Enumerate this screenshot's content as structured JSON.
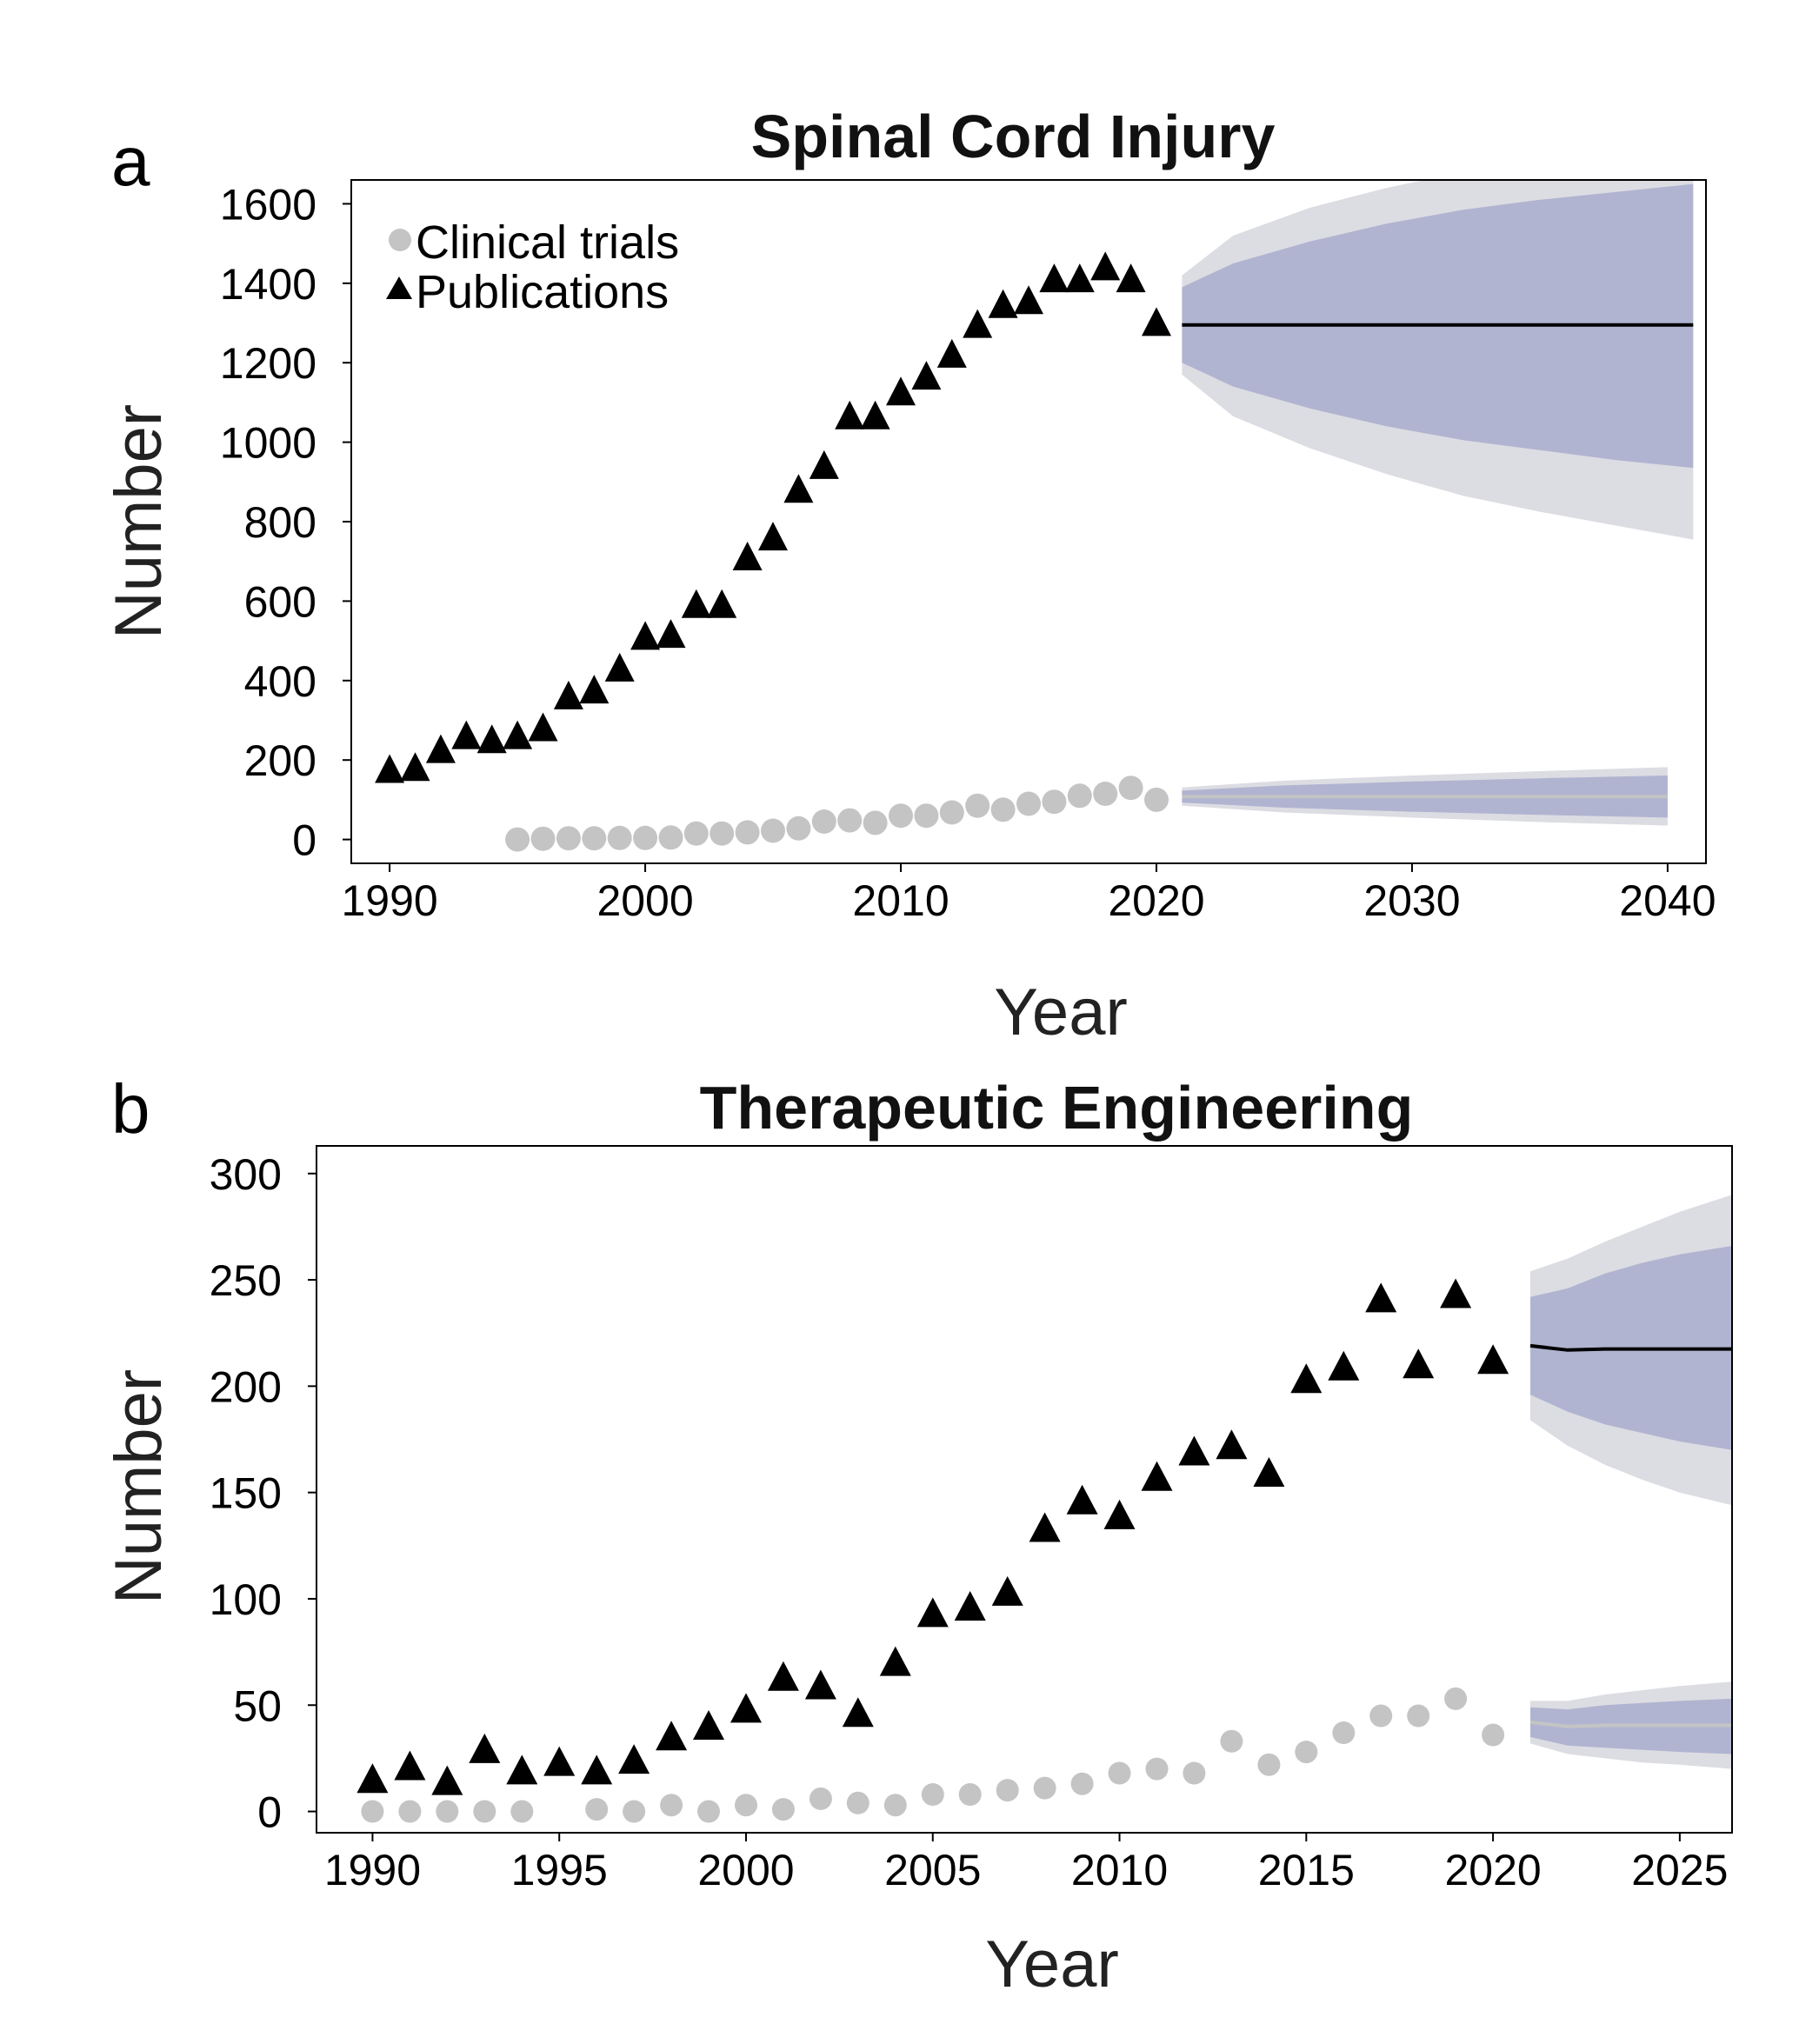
{
  "chart_data": [
    {
      "type": "scatter",
      "panel_label": "a",
      "title": "Spinal Cord Injury",
      "xlabel": "Year",
      "ylabel": "Number",
      "xlim": [
        1988.5,
        2041.5
      ],
      "ylim": [
        -60,
        1660
      ],
      "xticks": [
        1990,
        2000,
        2010,
        2020,
        2030,
        2040
      ],
      "yticks": [
        0,
        200,
        400,
        600,
        800,
        1000,
        1200,
        1400,
        1600
      ],
      "legend": {
        "placement": "top-left",
        "items": [
          {
            "label": "Clinical trials",
            "marker": "circle",
            "color": "#c4c4c4"
          },
          {
            "label": "Publications",
            "marker": "triangle",
            "color": "#000000"
          }
        ]
      },
      "series": [
        {
          "name": "Clinical trials",
          "marker": "circle",
          "color": "#c4c4c4",
          "x": [
            1995,
            1996,
            1997,
            1998,
            1999,
            2000,
            2001,
            2002,
            2003,
            2004,
            2005,
            2006,
            2007,
            2008,
            2009,
            2010,
            2011,
            2012,
            2013,
            2014,
            2015,
            2016,
            2017,
            2018,
            2019,
            2020
          ],
          "y": [
            0,
            2,
            3,
            3,
            4,
            4,
            5,
            15,
            15,
            18,
            22,
            28,
            45,
            48,
            42,
            60,
            60,
            68,
            85,
            75,
            90,
            95,
            110,
            115,
            130,
            100
          ]
        },
        {
          "name": "Publications",
          "marker": "triangle",
          "color": "#000000",
          "x": [
            1990,
            1991,
            1992,
            1993,
            1994,
            1995,
            1996,
            1997,
            1998,
            1999,
            2000,
            2001,
            2002,
            2003,
            2004,
            2005,
            2006,
            2007,
            2008,
            2009,
            2010,
            2011,
            2012,
            2013,
            2014,
            2015,
            2016,
            2017,
            2018,
            2019,
            2020
          ],
          "y": [
            175,
            180,
            225,
            260,
            250,
            260,
            280,
            360,
            375,
            430,
            510,
            515,
            590,
            590,
            710,
            760,
            880,
            940,
            1065,
            1065,
            1125,
            1165,
            1220,
            1295,
            1345,
            1355,
            1410,
            1410,
            1440,
            1410,
            1300
          ]
        }
      ],
      "forecasts": [
        {
          "series": "Publications",
          "line_color": "#000000",
          "x": [
            2021,
            2023,
            2026,
            2029,
            2032,
            2035,
            2038,
            2041
          ],
          "mean": [
            1295,
            1295,
            1295,
            1295,
            1295,
            1295,
            1295,
            1295
          ],
          "inner_lo": [
            1200,
            1140,
            1085,
            1040,
            1005,
            980,
            955,
            935
          ],
          "inner_hi": [
            1390,
            1450,
            1505,
            1550,
            1585,
            1610,
            1630,
            1650
          ],
          "outer_lo": [
            1170,
            1065,
            985,
            920,
            865,
            825,
            790,
            755
          ],
          "outer_hi": [
            1420,
            1520,
            1590,
            1640,
            1680,
            1710,
            1740,
            1760
          ]
        },
        {
          "series": "Clinical trials",
          "line_color": "#c4c4c4",
          "x": [
            2021,
            2025,
            2030,
            2035,
            2040
          ],
          "mean": [
            108,
            108,
            108,
            108,
            108
          ],
          "inner_lo": [
            93,
            80,
            70,
            62,
            55
          ],
          "inner_hi": [
            123,
            136,
            146,
            154,
            161
          ],
          "outer_lo": [
            85,
            68,
            55,
            44,
            35
          ],
          "outer_hi": [
            131,
            148,
            161,
            172,
            182
          ]
        }
      ],
      "band_colors": {
        "outer": "#dcdce3",
        "inner": "#b0b4d0"
      }
    },
    {
      "type": "scatter",
      "panel_label": "b",
      "title": "Therapeutic Engineering",
      "xlabel": "Year",
      "ylabel": "Number",
      "xlim": [
        1988.5,
        2026.4
      ],
      "ylim": [
        -10,
        313
      ],
      "xticks": [
        1990,
        1995,
        2000,
        2005,
        2010,
        2015,
        2020,
        2025
      ],
      "yticks": [
        0,
        50,
        100,
        150,
        200,
        250,
        300
      ],
      "series": [
        {
          "name": "Clinical trials",
          "marker": "circle",
          "color": "#c4c4c4",
          "x": [
            1990,
            1991,
            1992,
            1993,
            1994,
            1996,
            1997,
            1998,
            1999,
            2000,
            2001,
            2002,
            2003,
            2004,
            2005,
            2006,
            2007,
            2008,
            2009,
            2010,
            2011,
            2012,
            2013,
            2014,
            2015,
            2016,
            2017,
            2018,
            2019,
            2020
          ],
          "y": [
            0,
            0,
            0,
            0,
            0,
            1,
            0,
            3,
            0,
            3,
            1,
            6,
            4,
            3,
            8,
            8,
            10,
            11,
            13,
            18,
            20,
            18,
            33,
            22,
            28,
            37,
            45,
            45,
            53,
            36
          ]
        },
        {
          "name": "Publications",
          "marker": "triangle",
          "color": "#000000",
          "x": [
            1990,
            1991,
            1992,
            1993,
            1994,
            1995,
            1996,
            1997,
            1998,
            1999,
            2000,
            2001,
            2002,
            2003,
            2004,
            2005,
            2006,
            2007,
            2008,
            2009,
            2010,
            2011,
            2012,
            2013,
            2014,
            2015,
            2016,
            2017,
            2018,
            2019,
            2020
          ],
          "y": [
            15,
            21,
            14,
            29,
            19,
            23,
            19,
            24,
            35,
            40,
            48,
            63,
            59,
            46,
            70,
            93,
            96,
            103,
            133,
            146,
            139,
            157,
            169,
            172,
            159,
            203,
            209,
            241,
            210,
            243,
            212
          ]
        }
      ],
      "forecasts": [
        {
          "series": "Publications",
          "line_color": "#000000",
          "x": [
            2021,
            2022,
            2023,
            2024,
            2025,
            2026.4
          ],
          "mean": [
            219,
            217,
            217.5,
            217.5,
            217.5,
            217.5
          ],
          "inner_lo": [
            196,
            188,
            182,
            178,
            174,
            170
          ],
          "inner_hi": [
            242,
            246,
            253,
            258,
            262,
            266
          ],
          "outer_lo": [
            184,
            172,
            163,
            156,
            150,
            144
          ],
          "outer_hi": [
            254,
            260,
            268,
            275,
            282,
            290
          ]
        },
        {
          "series": "Clinical trials",
          "line_color": "#c4c4c4",
          "x": [
            2021,
            2022,
            2023,
            2024,
            2025,
            2026.4
          ],
          "mean": [
            42,
            40,
            40.5,
            40.5,
            40.5,
            40.5
          ],
          "inner_lo": [
            35,
            31,
            30,
            29,
            28,
            27
          ],
          "inner_hi": [
            49,
            48,
            50,
            51,
            52,
            53
          ],
          "outer_lo": [
            32,
            27,
            25,
            23,
            22,
            20
          ],
          "outer_hi": [
            52,
            52,
            55,
            57,
            59,
            61
          ]
        }
      ],
      "band_colors": {
        "outer": "#dcdce3",
        "inner": "#b0b4d0"
      }
    }
  ]
}
